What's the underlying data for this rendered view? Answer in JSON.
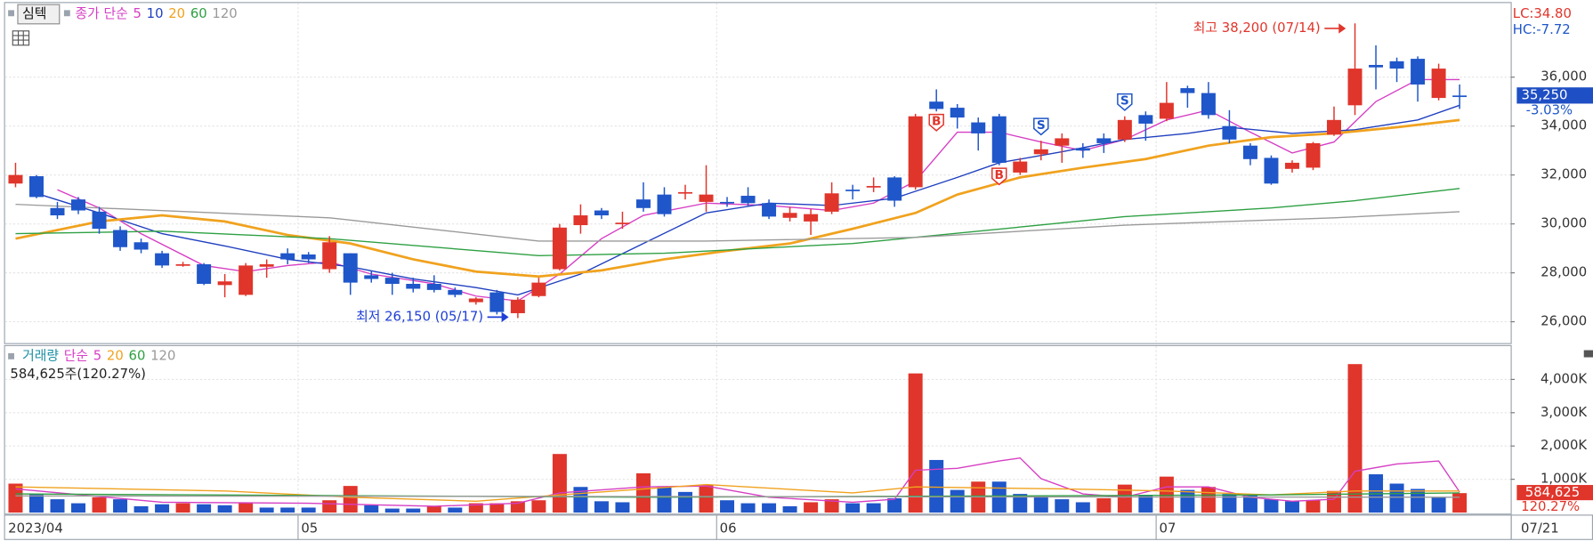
{
  "chart_data": [
    {
      "type": "candlestick",
      "title": "심텍",
      "ma_label": "종가 단순",
      "lc_label": "LC:34.80",
      "hc_label": "HC:-7.72",
      "categories": [
        "2023/04",
        null,
        null,
        null,
        null,
        null,
        null,
        null,
        null,
        null,
        null,
        null,
        null,
        null,
        "05",
        null,
        null,
        null,
        null,
        null,
        null,
        null,
        null,
        null,
        null,
        null,
        null,
        null,
        null,
        null,
        null,
        null,
        null,
        null,
        "06",
        null,
        null,
        null,
        null,
        null,
        null,
        null,
        null,
        null,
        null,
        null,
        null,
        null,
        null,
        null,
        null,
        null,
        null,
        null,
        null,
        "07",
        null,
        null,
        null,
        null,
        null,
        null,
        null,
        null,
        null,
        null,
        null,
        null,
        null,
        "07/21"
      ],
      "open": [
        31650,
        31950,
        30650,
        31000,
        30500,
        29750,
        29250,
        28800,
        28300,
        28350,
        27500,
        27100,
        28250,
        28800,
        28750,
        28150,
        28800,
        27900,
        27800,
        27550,
        27550,
        27300,
        26800,
        27200,
        26350,
        27050,
        28150,
        29950,
        30550,
        30000,
        31000,
        31200,
        31250,
        30900,
        30900,
        31150,
        30850,
        30250,
        30100,
        30500,
        31400,
        31500,
        31900,
        31500,
        35000,
        34750,
        34150,
        34400,
        32100,
        32850,
        33200,
        33100,
        33500,
        33450,
        34450,
        34300,
        35550,
        35350,
        34000,
        33200,
        32700,
        32250,
        32300,
        33650,
        34850,
        36500,
        36650,
        36750,
        35150,
        35250
      ],
      "high": [
        32500,
        32000,
        30900,
        31100,
        30700,
        29900,
        29400,
        28900,
        28450,
        28400,
        27950,
        28400,
        28550,
        29000,
        28850,
        29500,
        28800,
        28100,
        28000,
        27800,
        27900,
        27400,
        27000,
        27300,
        27000,
        27800,
        30000,
        30800,
        30650,
        30500,
        31700,
        31500,
        31600,
        32400,
        31100,
        31500,
        31000,
        30700,
        30600,
        31700,
        31600,
        31900,
        31950,
        34500,
        35500,
        34900,
        34350,
        34500,
        32700,
        33400,
        33700,
        33300,
        33700,
        34400,
        34600,
        35800,
        35650,
        35800,
        34650,
        33300,
        32800,
        32600,
        33350,
        34800,
        38200,
        37300,
        36800,
        36850,
        36550,
        35700
      ],
      "low": [
        31500,
        31050,
        30200,
        30400,
        29600,
        28900,
        28800,
        28200,
        28250,
        27500,
        27000,
        27050,
        27800,
        28350,
        28400,
        28000,
        27100,
        27600,
        27100,
        27200,
        27200,
        27000,
        26700,
        26300,
        26150,
        27000,
        28100,
        29600,
        30200,
        29800,
        30500,
        30300,
        31000,
        30500,
        30700,
        30700,
        30200,
        30100,
        29550,
        30400,
        31000,
        31300,
        30700,
        31400,
        34600,
        33900,
        33000,
        32400,
        32000,
        32600,
        32500,
        32700,
        32900,
        33350,
        33400,
        34200,
        34750,
        34300,
        33300,
        32400,
        31600,
        32100,
        32200,
        33600,
        34450,
        35500,
        35800,
        35000,
        35050,
        34700
      ],
      "close": [
        32000,
        31100,
        30350,
        30550,
        29800,
        29050,
        28950,
        28300,
        28350,
        27550,
        27650,
        28300,
        28350,
        28550,
        28550,
        29250,
        27600,
        27750,
        27550,
        27350,
        27300,
        27100,
        26950,
        26400,
        26900,
        27600,
        29850,
        30350,
        30350,
        30050,
        30650,
        30400,
        31300,
        31200,
        30850,
        30850,
        30300,
        30450,
        30400,
        31250,
        31350,
        31550,
        30950,
        34400,
        34700,
        34350,
        33700,
        32500,
        32550,
        33050,
        33500,
        33000,
        33300,
        34250,
        34100,
        34950,
        35350,
        34450,
        33450,
        32650,
        31650,
        32500,
        33300,
        34250,
        36350,
        36400,
        36350,
        35700,
        36350,
        35250
      ],
      "up_color": "#e0352b",
      "down_color": "#1f56c9",
      "moving_averages": [
        {
          "name": "5",
          "color": "#d63fc4",
          "line_width": 1.2,
          "x": [
            2,
            4,
            6,
            9,
            11,
            13,
            15,
            17,
            20,
            22,
            24,
            26,
            28,
            30,
            33,
            36,
            39,
            41,
            43,
            45,
            47,
            49,
            51,
            53,
            55,
            57,
            59,
            61,
            63,
            65,
            67,
            69
          ],
          "values": [
            31400,
            30650,
            29600,
            28300,
            28050,
            28300,
            28450,
            27950,
            27550,
            27050,
            26850,
            27950,
            29400,
            30350,
            30850,
            30750,
            30550,
            30850,
            31750,
            33750,
            33750,
            33350,
            33000,
            33450,
            34250,
            34650,
            33750,
            32900,
            33350,
            35000,
            35900,
            35900
          ]
        },
        {
          "name": "10",
          "color": "#1f3fbf",
          "line_width": 1.2,
          "x": [
            1,
            4,
            7,
            10,
            13,
            16,
            19,
            22,
            24,
            27,
            30,
            33,
            36,
            39,
            42,
            45,
            47,
            50,
            53,
            56,
            58,
            61,
            64,
            67,
            69
          ],
          "values": [
            31250,
            30450,
            29600,
            29100,
            28550,
            28250,
            27750,
            27400,
            27100,
            27950,
            29200,
            30450,
            30850,
            30750,
            31050,
            31900,
            32500,
            32950,
            33450,
            33700,
            33950,
            33700,
            33850,
            34250,
            34850
          ]
        },
        {
          "name": "20",
          "color": "#f0a21e",
          "line_width": 2.4,
          "x": [
            0,
            4,
            7,
            10,
            13,
            16,
            19,
            22,
            25,
            28,
            31,
            34,
            37,
            40,
            43,
            45,
            48,
            51,
            54,
            57,
            60,
            63,
            66,
            69
          ],
          "values": [
            29400,
            30100,
            30350,
            30100,
            29550,
            29200,
            28550,
            28050,
            27850,
            28100,
            28550,
            28900,
            29200,
            29800,
            30450,
            31200,
            31900,
            32300,
            32650,
            33200,
            33550,
            33700,
            33950,
            34250
          ]
        },
        {
          "name": "60",
          "color": "#2ea043",
          "line_width": 1.2,
          "x": [
            0,
            7,
            15,
            25,
            31,
            40,
            46,
            53,
            60,
            64,
            69
          ],
          "values": [
            29600,
            29700,
            29400,
            28700,
            28800,
            29200,
            29700,
            30300,
            30650,
            30950,
            31450
          ]
        },
        {
          "name": "120",
          "color": "#9a9a9a",
          "line_width": 1.2,
          "x": [
            0,
            15,
            25,
            33,
            43,
            53,
            63,
            69
          ],
          "values": [
            30800,
            30250,
            29300,
            29300,
            29450,
            29950,
            30250,
            30500
          ]
        }
      ],
      "signals": [
        {
          "text": "B",
          "x": 44,
          "color": "#e0352b"
        },
        {
          "text": "B",
          "x": 47,
          "color": "#e0352b"
        },
        {
          "text": "S",
          "x": 49,
          "color": "#1f56c9"
        },
        {
          "text": "S",
          "x": 53,
          "color": "#1f56c9"
        }
      ],
      "annotations": [
        {
          "text": "최고 38,200 (07/14)",
          "x": 64,
          "at": "high",
          "color": "#e0352b"
        },
        {
          "text": "최저 26,150 (05/17)",
          "x": 24,
          "at": "low",
          "color": "#1f3fd6"
        }
      ],
      "last_price": {
        "value": 35250,
        "label": "35,250"
      },
      "change": {
        "value": -3.03,
        "label": "-3.03%"
      },
      "ylim": [
        25170,
        39030
      ],
      "yticks": [
        {
          "value": 26000,
          "label": "26,000"
        },
        {
          "value": 28000,
          "label": "28,000"
        },
        {
          "value": 30000,
          "label": "30,000"
        },
        {
          "value": 32000,
          "label": "32,000"
        },
        {
          "value": 34000,
          "label": "34,000"
        },
        {
          "value": 36000,
          "label": "36,000"
        }
      ],
      "grid": true
    },
    {
      "type": "bar",
      "title": "거래량",
      "ma_label": "단순",
      "info": "584,625주(120.27%)",
      "values": [
        870000,
        560000,
        400000,
        280000,
        460000,
        400000,
        190000,
        250000,
        280000,
        250000,
        220000,
        310000,
        150000,
        150000,
        150000,
        370000,
        800000,
        220000,
        120000,
        120000,
        190000,
        150000,
        280000,
        280000,
        340000,
        370000,
        1760000,
        770000,
        340000,
        310000,
        1180000,
        770000,
        620000,
        840000,
        370000,
        280000,
        280000,
        190000,
        310000,
        400000,
        280000,
        280000,
        430000,
        4180000,
        1580000,
        680000,
        930000,
        930000,
        560000,
        500000,
        400000,
        310000,
        430000,
        840000,
        530000,
        1080000,
        680000,
        770000,
        560000,
        530000,
        400000,
        340000,
        370000,
        650000,
        4460000,
        1150000,
        870000,
        710000,
        460000,
        584625
      ],
      "bar_colors": [
        "up",
        "down",
        "down",
        "down",
        "up",
        "down",
        "down",
        "down",
        "up",
        "down",
        "down",
        "up",
        "down",
        "down",
        "down",
        "up",
        "up",
        "down",
        "down",
        "down",
        "up",
        "down",
        "up",
        "up",
        "up",
        "up",
        "up",
        "down",
        "down",
        "down",
        "up",
        "down",
        "down",
        "up",
        "down",
        "down",
        "down",
        "down",
        "up",
        "up",
        "down",
        "down",
        "down",
        "up",
        "down",
        "down",
        "up",
        "down",
        "down",
        "down",
        "down",
        "down",
        "up",
        "up",
        "down",
        "up",
        "down",
        "up",
        "down",
        "down",
        "down",
        "down",
        "up",
        "up",
        "up",
        "down",
        "down",
        "down",
        "down",
        "up"
      ],
      "up_color": "#e0352b",
      "down_color": "#1f56c9",
      "moving_averages": [
        {
          "name": "5",
          "color": "#d63fc4",
          "line_width": 1.2,
          "x": [
            0,
            7,
            14,
            20,
            24,
            26,
            30,
            33,
            36,
            40,
            42,
            43,
            45,
            47,
            48,
            49,
            51,
            53,
            55,
            57,
            59,
            61,
            63,
            64,
            66,
            68,
            69
          ],
          "values": [
            710000,
            310000,
            280000,
            190000,
            280000,
            590000,
            770000,
            800000,
            460000,
            310000,
            400000,
            1270000,
            1330000,
            1550000,
            1640000,
            1020000,
            560000,
            460000,
            770000,
            770000,
            460000,
            340000,
            400000,
            1240000,
            1460000,
            1550000,
            620000
          ]
        },
        {
          "name": "20",
          "color": "#f0a21e",
          "line_width": 1.2,
          "x": [
            0,
            10,
            16,
            22,
            26,
            33,
            40,
            43,
            50,
            55,
            60,
            64,
            69
          ],
          "values": [
            770000,
            650000,
            460000,
            340000,
            530000,
            840000,
            590000,
            770000,
            710000,
            650000,
            530000,
            650000,
            650000
          ]
        },
        {
          "name": "60",
          "color": "#2ea043",
          "line_width": 1.2,
          "x": [
            0,
            30,
            60,
            69
          ],
          "values": [
            560000,
            460000,
            530000,
            590000
          ]
        },
        {
          "name": "120",
          "color": "#9a9a9a",
          "line_width": 1.2,
          "x": [
            0,
            69
          ],
          "values": [
            500000,
            460000
          ]
        }
      ],
      "last_value": {
        "value": 584625,
        "label": "584,625"
      },
      "ratio": {
        "value": 120.27,
        "label": "120.27%"
      },
      "ylim": [
        0,
        5000000
      ],
      "yticks": [
        {
          "value": 1000000,
          "label": "1,000K"
        },
        {
          "value": 2000000,
          "label": "2,000K"
        },
        {
          "value": 3000000,
          "label": "3,000K"
        },
        {
          "value": 4000000,
          "label": "4,000K"
        }
      ],
      "grid": true
    }
  ]
}
